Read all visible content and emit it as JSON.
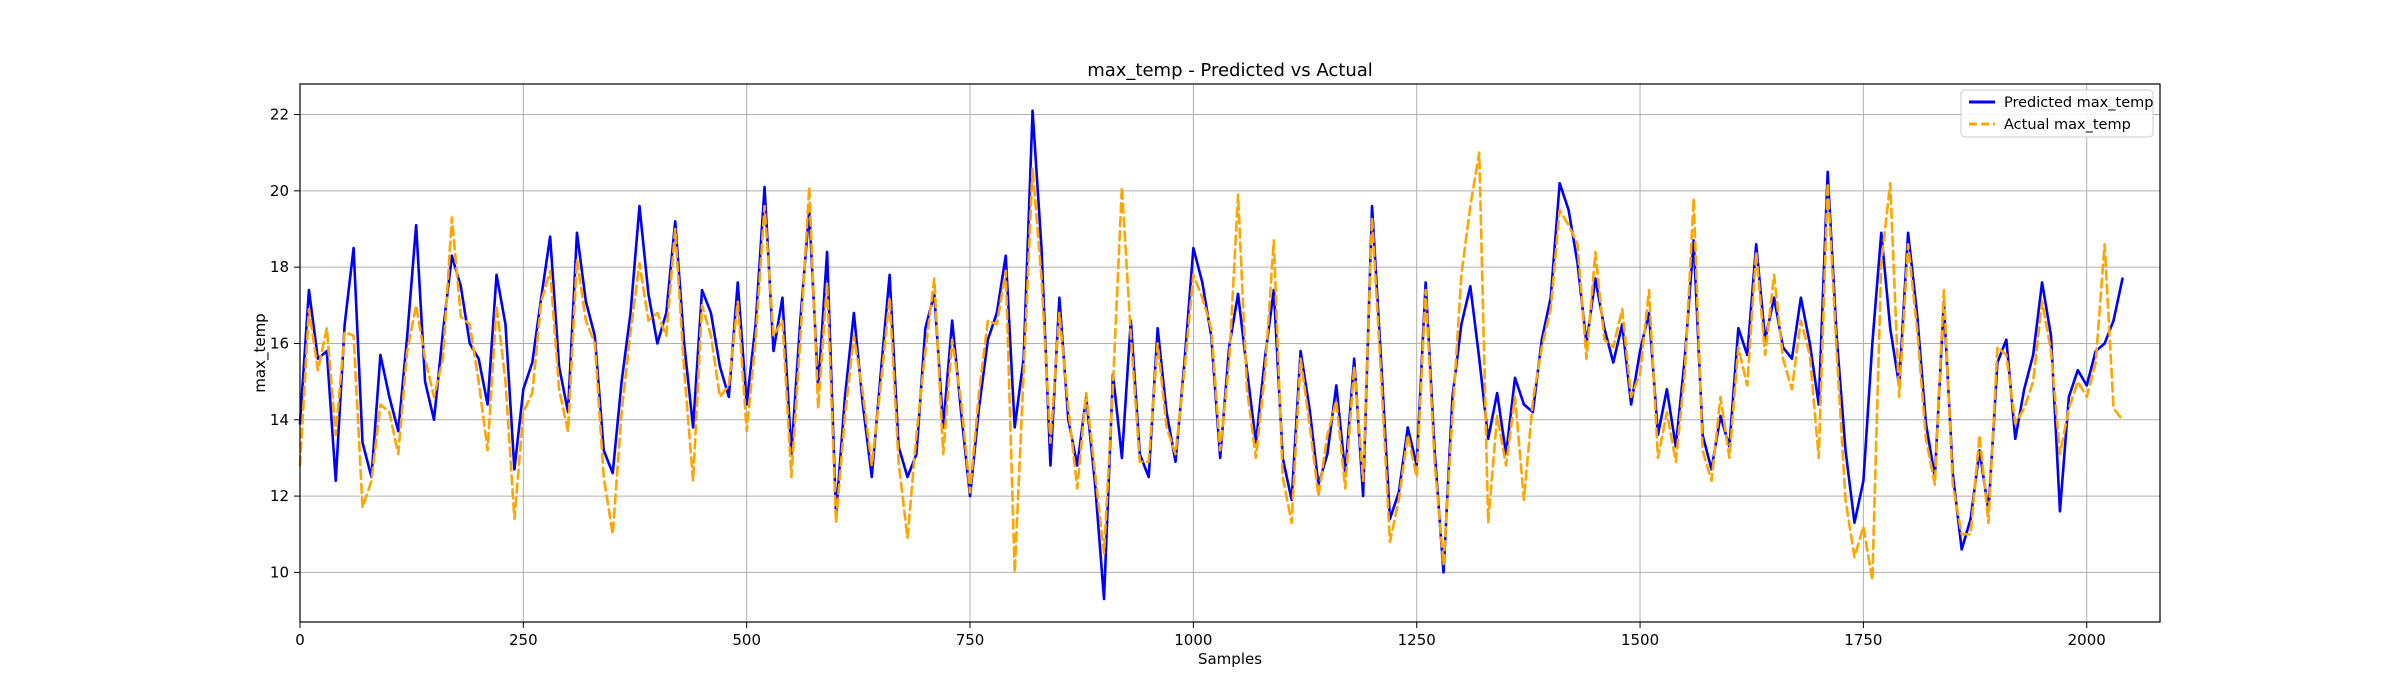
{
  "chart_data": {
    "type": "line",
    "title": "max_temp - Predicted vs Actual",
    "xlabel": "Samples",
    "ylabel": "max_temp",
    "xlim": [
      0,
      2082
    ],
    "ylim": [
      8.7,
      22.8
    ],
    "xticks": [
      0,
      250,
      500,
      750,
      1000,
      1250,
      1500,
      1750,
      2000
    ],
    "xtick_labels": [
      "0",
      "250",
      "500",
      "750",
      "1000",
      "1250",
      "1500",
      "1750",
      "2000"
    ],
    "yticks": [
      10,
      12,
      14,
      16,
      18,
      20,
      22
    ],
    "ytick_labels": [
      "10",
      "12",
      "14",
      "16",
      "18",
      "20",
      "22"
    ],
    "grid": true,
    "legend_position": "top-right",
    "n_samples": 2082,
    "anchors_x": [
      0,
      10,
      20,
      30,
      40,
      50,
      60,
      70,
      80,
      90,
      100,
      110,
      120,
      130,
      140,
      150,
      160,
      170,
      180,
      190,
      200,
      210,
      220,
      230,
      240,
      250,
      260,
      270,
      280,
      290,
      300,
      310,
      320,
      330,
      340,
      350,
      360,
      370,
      380,
      390,
      400,
      410,
      420,
      430,
      440,
      450,
      460,
      470,
      480,
      490,
      500,
      510,
      520,
      530,
      540,
      550,
      560,
      570,
      580,
      590,
      600,
      610,
      620,
      630,
      640,
      650,
      660,
      670,
      680,
      690,
      700,
      710,
      720,
      730,
      740,
      750,
      760,
      770,
      780,
      790,
      800,
      810,
      820,
      830,
      840,
      850,
      860,
      870,
      880,
      890,
      900,
      910,
      920,
      930,
      940,
      950,
      960,
      970,
      980,
      990,
      1000,
      1010,
      1020,
      1030,
      1040,
      1050,
      1060,
      1070,
      1080,
      1090,
      1100,
      1110,
      1120,
      1130,
      1140,
      1150,
      1160,
      1170,
      1180,
      1190,
      1200,
      1210,
      1220,
      1230,
      1240,
      1250,
      1260,
      1270,
      1280,
      1290,
      1300,
      1310,
      1320,
      1330,
      1340,
      1350,
      1360,
      1370,
      1380,
      1390,
      1400,
      1410,
      1420,
      1430,
      1440,
      1450,
      1460,
      1470,
      1480,
      1490,
      1500,
      1510,
      1520,
      1530,
      1540,
      1550,
      1560,
      1570,
      1580,
      1590,
      1600,
      1610,
      1620,
      1630,
      1640,
      1650,
      1660,
      1670,
      1680,
      1690,
      1700,
      1710,
      1720,
      1730,
      1740,
      1750,
      1760,
      1770,
      1780,
      1790,
      1800,
      1810,
      1820,
      1830,
      1840,
      1850,
      1860,
      1870,
      1880,
      1890,
      1900,
      1910,
      1920,
      1930,
      1940,
      1950,
      1960,
      1970,
      1980,
      1990,
      2000,
      2010,
      2020,
      2030,
      2040,
      2050,
      2060,
      2070,
      2080
    ],
    "series": [
      {
        "name": "Predicted max_temp",
        "color": "#0000ff",
        "style": "solid",
        "values": [
          13.9,
          17.4,
          15.6,
          15.8,
          12.4,
          16.5,
          18.5,
          13.4,
          12.5,
          15.7,
          14.6,
          13.7,
          16.2,
          19.1,
          15.0,
          14.0,
          16.3,
          18.3,
          17.5,
          16.0,
          15.6,
          14.4,
          17.8,
          16.5,
          12.7,
          14.8,
          15.5,
          17.2,
          18.8,
          15.4,
          14.2,
          18.9,
          17.1,
          16.2,
          13.2,
          12.6,
          15.0,
          16.8,
          19.6,
          17.3,
          16.0,
          16.8,
          19.2,
          16.0,
          13.8,
          17.4,
          16.8,
          15.4,
          14.6,
          17.6,
          14.4,
          16.5,
          20.1,
          15.8,
          17.2,
          13.1,
          16.6,
          19.5,
          14.8,
          18.4,
          11.5,
          14.6,
          16.8,
          14.4,
          12.5,
          15.2,
          17.8,
          13.3,
          12.5,
          13.1,
          16.4,
          17.3,
          13.8,
          16.6,
          14.2,
          12.0,
          14.3,
          16.1,
          16.8,
          18.3,
          13.8,
          15.6,
          22.1,
          18.5,
          12.8,
          17.2,
          14.0,
          12.8,
          14.6,
          12.3,
          9.3,
          15.2,
          13.0,
          16.6,
          13.1,
          12.5,
          16.4,
          14.2,
          12.9,
          15.5,
          18.5,
          17.6,
          16.2,
          13.0,
          15.9,
          17.3,
          15.3,
          13.4,
          15.6,
          17.4,
          13.0,
          11.9,
          15.8,
          14.3,
          12.3,
          13.1,
          14.9,
          12.6,
          15.6,
          12.0,
          19.6,
          15.6,
          11.4,
          12.1,
          13.8,
          12.8,
          17.6,
          13.2,
          10.0,
          14.6,
          16.5,
          17.5,
          15.6,
          13.5,
          14.7,
          13.1,
          15.1,
          14.4,
          14.2,
          16.1,
          17.2,
          20.2,
          19.5,
          18.1,
          16.0,
          17.7,
          16.4,
          15.5,
          16.5,
          14.4,
          15.8,
          16.8,
          13.6,
          14.8,
          13.3,
          15.6,
          18.7,
          13.6,
          12.7,
          14.1,
          13.3,
          16.4,
          15.7,
          18.6,
          16.1,
          17.2,
          15.9,
          15.6,
          17.2,
          16.0,
          14.4,
          20.5,
          16.2,
          13.2,
          11.3,
          12.4,
          16.0,
          18.9,
          16.4,
          14.9,
          18.9,
          16.8,
          13.9,
          12.5,
          17.1,
          12.6,
          10.6,
          11.4,
          13.2,
          11.6,
          15.5,
          16.1,
          13.5,
          14.8,
          15.7,
          17.6,
          16.2,
          11.6,
          14.6,
          15.3,
          14.9,
          15.8,
          16.0,
          16.6,
          17.7
        ]
      },
      {
        "name": "Actual max_temp",
        "color": "#ffa500",
        "style": "dashed",
        "values": [
          12.8,
          16.9,
          15.3,
          16.4,
          13.6,
          16.3,
          16.2,
          11.7,
          12.4,
          14.4,
          14.2,
          13.1,
          15.8,
          17.0,
          15.6,
          14.6,
          15.6,
          19.3,
          16.7,
          16.5,
          15.0,
          13.2,
          17.0,
          15.0,
          11.4,
          14.2,
          14.7,
          17.1,
          17.9,
          14.8,
          13.7,
          18.2,
          16.6,
          16.0,
          12.5,
          11.0,
          14.2,
          16.3,
          18.1,
          16.6,
          16.8,
          16.2,
          19.0,
          15.3,
          12.4,
          17.0,
          16.2,
          14.6,
          14.9,
          17.1,
          13.7,
          16.1,
          19.6,
          16.2,
          16.6,
          12.5,
          16.1,
          20.1,
          14.3,
          17.6,
          11.3,
          14.1,
          16.2,
          14.7,
          12.8,
          14.9,
          17.2,
          12.9,
          10.9,
          13.6,
          15.8,
          17.7,
          13.1,
          16.1,
          14.5,
          12.1,
          14.7,
          16.6,
          16.5,
          17.9,
          10.0,
          15.2,
          20.6,
          17.7,
          13.4,
          16.8,
          14.3,
          12.2,
          14.7,
          12.6,
          10.5,
          14.9,
          20.1,
          16.2,
          12.9,
          12.9,
          16.0,
          13.8,
          13.1,
          15.3,
          17.8,
          17.2,
          16.4,
          13.2,
          15.5,
          19.9,
          14.8,
          13.0,
          15.2,
          18.7,
          12.5,
          11.3,
          15.6,
          13.9,
          12.0,
          13.6,
          14.5,
          12.2,
          15.4,
          12.4,
          19.3,
          15.2,
          10.8,
          11.9,
          13.6,
          12.5,
          17.4,
          12.9,
          10.2,
          14.1,
          17.8,
          19.6,
          21.0,
          11.3,
          14.1,
          12.8,
          14.6,
          11.9,
          14.5,
          15.9,
          16.9,
          19.5,
          19.1,
          18.6,
          15.6,
          18.4,
          16.1,
          15.9,
          16.9,
          14.6,
          15.2,
          17.4,
          13.0,
          14.2,
          12.9,
          15.2,
          19.8,
          13.2,
          12.4,
          14.6,
          13.0,
          15.9,
          14.9,
          18.4,
          15.7,
          17.8,
          15.6,
          14.8,
          16.6,
          15.7,
          13.0,
          20.2,
          15.8,
          11.9,
          10.4,
          11.2,
          9.8,
          18.1,
          20.2,
          14.6,
          18.6,
          16.4,
          13.5,
          12.3,
          17.4,
          12.3,
          11.0,
          11.0,
          13.6,
          11.3,
          15.9,
          15.7,
          13.9,
          14.3,
          15.0,
          17.1,
          15.8,
          13.1,
          14.3,
          15.0,
          14.6,
          15.5,
          18.6,
          14.3,
          14.0
        ]
      }
    ]
  }
}
